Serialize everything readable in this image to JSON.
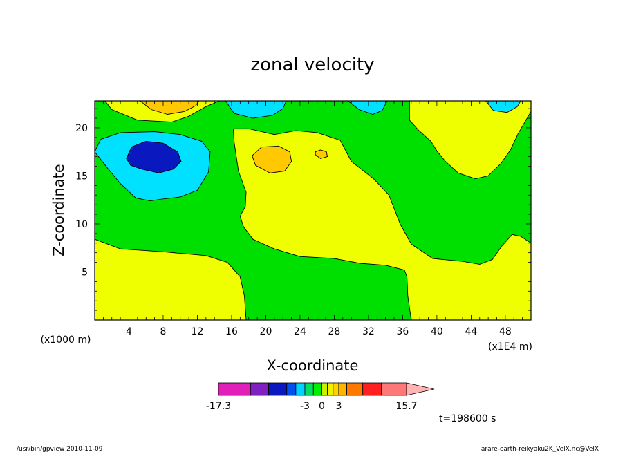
{
  "chart_data": {
    "type": "heatmap",
    "title": "zonal velocity",
    "xlabel": "X-coordinate",
    "ylabel": "Z-coordinate",
    "x_unit_left": "(x1000 m)",
    "x_unit_right": "(x1E4 m)",
    "xlim": [
      0,
      51
    ],
    "ylim": [
      0,
      22.8
    ],
    "x_ticks": [
      4,
      8,
      12,
      16,
      20,
      24,
      28,
      32,
      36,
      40,
      44,
      48
    ],
    "y_ticks": [
      5,
      10,
      15,
      20
    ],
    "time_label": "t=198600 s",
    "colorbar": {
      "labels": [
        "-17.3",
        "-3",
        "0",
        "3",
        "15.7"
      ],
      "label_values": [
        -17.3,
        -3,
        0,
        3,
        15.7
      ],
      "bins": [
        {
          "from": -17.3,
          "to": -12.0,
          "color": "#e020b8"
        },
        {
          "from": -12.0,
          "to": -9.0,
          "color": "#8020c0"
        },
        {
          "from": -9.0,
          "to": -6.0,
          "color": "#0a18c0"
        },
        {
          "from": -6.0,
          "to": -4.5,
          "color": "#0050f0"
        },
        {
          "from": -4.5,
          "to": -3.0,
          "color": "#00d2ff"
        },
        {
          "from": -3.0,
          "to": -1.5,
          "color": "#00e060"
        },
        {
          "from": -1.5,
          "to": 0.0,
          "color": "#00f000"
        },
        {
          "from": 0.0,
          "to": 1.0,
          "color": "#c8f000"
        },
        {
          "from": 1.0,
          "to": 2.0,
          "color": "#f0f000"
        },
        {
          "from": 2.0,
          "to": 3.0,
          "color": "#ffd200"
        },
        {
          "from": 3.0,
          "to": 4.5,
          "color": "#ffb400"
        },
        {
          "from": 4.5,
          "to": 7.5,
          "color": "#ff7800"
        },
        {
          "from": 7.5,
          "to": 11.0,
          "color": "#ff2020"
        },
        {
          "from": 11.0,
          "to": 15.7,
          "color": "#ff7878"
        }
      ],
      "overflow_color": "#ffb4b4"
    },
    "field_colors": {
      "strong_negative": "#0a18c0",
      "negative": "#00e0ff",
      "weak_negative": "#00e000",
      "weak_positive": "#f0ff00",
      "positive": "#ffc800"
    },
    "regions": [
      {
        "level": "weak_positive",
        "points": [
          [
            0,
            8.4
          ],
          [
            3,
            7.4
          ],
          [
            8,
            7.1
          ],
          [
            13,
            6.7
          ],
          [
            15.5,
            6.0
          ],
          [
            17,
            4.5
          ],
          [
            17.5,
            2.5
          ],
          [
            17.7,
            0
          ],
          [
            0,
            0
          ]
        ]
      },
      {
        "level": "weak_positive",
        "points": [
          [
            37,
            0
          ],
          [
            36.6,
            2.5
          ],
          [
            36.5,
            4.5
          ],
          [
            36.2,
            5.2
          ],
          [
            34,
            5.7
          ],
          [
            31,
            5.9
          ],
          [
            28,
            6.4
          ],
          [
            24,
            6.6
          ],
          [
            21,
            7.4
          ],
          [
            18.5,
            8.4
          ],
          [
            17.4,
            9.7
          ],
          [
            17,
            10.8
          ],
          [
            17.6,
            11.8
          ],
          [
            17.7,
            13.3
          ],
          [
            16.8,
            15.5
          ],
          [
            16.3,
            18.5
          ],
          [
            16.2,
            19.9
          ],
          [
            18,
            19.9
          ],
          [
            21,
            19.3
          ],
          [
            23.5,
            19.7
          ],
          [
            26,
            19.5
          ],
          [
            28.7,
            18.7
          ],
          [
            30,
            16.5
          ],
          [
            32.6,
            14.7
          ],
          [
            34.4,
            13
          ],
          [
            35.7,
            10
          ],
          [
            37,
            7.9
          ],
          [
            39.5,
            6.4
          ],
          [
            43,
            6.1
          ],
          [
            45,
            5.8
          ],
          [
            46.5,
            6.3
          ],
          [
            47.6,
            7.7
          ],
          [
            48.8,
            8.9
          ],
          [
            49.8,
            8.7
          ],
          [
            51,
            8.0
          ],
          [
            51,
            0
          ]
        ]
      },
      {
        "level": "weak_positive",
        "points": [
          [
            36.8,
            22.8
          ],
          [
            36.8,
            20.8
          ],
          [
            37.8,
            19.8
          ],
          [
            39.3,
            18.6
          ],
          [
            40,
            17.6
          ],
          [
            41,
            16.5
          ],
          [
            42.5,
            15.3
          ],
          [
            44.5,
            14.7
          ],
          [
            46,
            15.0
          ],
          [
            47.5,
            16.3
          ],
          [
            48.6,
            17.7
          ],
          [
            49.5,
            19.4
          ],
          [
            51,
            21.7
          ],
          [
            51,
            22.8
          ]
        ]
      },
      {
        "level": "weak_positive",
        "points": [
          [
            1.2,
            22.8
          ],
          [
            2,
            21.9
          ],
          [
            5,
            20.8
          ],
          [
            9,
            20.6
          ],
          [
            11,
            21.2
          ],
          [
            13,
            22.2
          ],
          [
            14.6,
            22.8
          ]
        ]
      },
      {
        "level": "positive",
        "points": [
          [
            5.3,
            22.8
          ],
          [
            6.6,
            21.9
          ],
          [
            8.5,
            21.4
          ],
          [
            10.5,
            21.7
          ],
          [
            11.8,
            22.3
          ],
          [
            12.2,
            22.8
          ]
        ]
      },
      {
        "level": "positive",
        "points": [
          [
            18.4,
            17.1
          ],
          [
            18.8,
            16.1
          ],
          [
            20.5,
            15.3
          ],
          [
            22.2,
            15.5
          ],
          [
            23,
            16.5
          ],
          [
            22.8,
            17.5
          ],
          [
            21.5,
            18.1
          ],
          [
            19.5,
            18.0
          ]
        ]
      },
      {
        "level": "positive",
        "points": [
          [
            25.8,
            17.2
          ],
          [
            26.4,
            16.8
          ],
          [
            27.2,
            17.0
          ],
          [
            27.1,
            17.5
          ],
          [
            26.4,
            17.7
          ],
          [
            25.8,
            17.5
          ]
        ]
      },
      {
        "level": "negative",
        "points": [
          [
            0,
            17.5
          ],
          [
            0.7,
            18.8
          ],
          [
            3,
            19.5
          ],
          [
            7,
            19.6
          ],
          [
            10,
            19.3
          ],
          [
            12.5,
            18.6
          ],
          [
            13.5,
            17.5
          ],
          [
            13.3,
            15.4
          ],
          [
            12,
            13.5
          ],
          [
            10,
            12.8
          ],
          [
            8,
            12.6
          ],
          [
            6.5,
            12.4
          ],
          [
            4.8,
            12.7
          ],
          [
            3,
            14.2
          ],
          [
            1.5,
            15.8
          ]
        ]
      },
      {
        "level": "strong_negative",
        "points": [
          [
            3.7,
            16.8
          ],
          [
            4.3,
            18.0
          ],
          [
            6,
            18.6
          ],
          [
            8,
            18.4
          ],
          [
            9.7,
            17.5
          ],
          [
            10.1,
            16.5
          ],
          [
            9.2,
            15.7
          ],
          [
            7.5,
            15.3
          ],
          [
            5.5,
            15.7
          ],
          [
            4.2,
            16.1
          ]
        ]
      },
      {
        "level": "negative",
        "points": [
          [
            15.3,
            22.8
          ],
          [
            16.3,
            21.5
          ],
          [
            18.5,
            21.0
          ],
          [
            20.8,
            21.3
          ],
          [
            22,
            22.0
          ],
          [
            22.4,
            22.8
          ]
        ]
      },
      {
        "level": "negative",
        "points": [
          [
            29.6,
            22.8
          ],
          [
            30.9,
            21.9
          ],
          [
            32.5,
            21.4
          ],
          [
            33.6,
            21.8
          ],
          [
            34.2,
            22.8
          ]
        ]
      },
      {
        "level": "negative",
        "points": [
          [
            45.7,
            22.8
          ],
          [
            46.6,
            21.8
          ],
          [
            48.2,
            21.6
          ],
          [
            49.4,
            22.2
          ],
          [
            49.8,
            22.8
          ]
        ]
      }
    ]
  },
  "footer": {
    "left": "/usr/bin/gpview  2010-11-09",
    "right": "arare-earth-reikyaku2K_VelX.nc@VelX"
  }
}
